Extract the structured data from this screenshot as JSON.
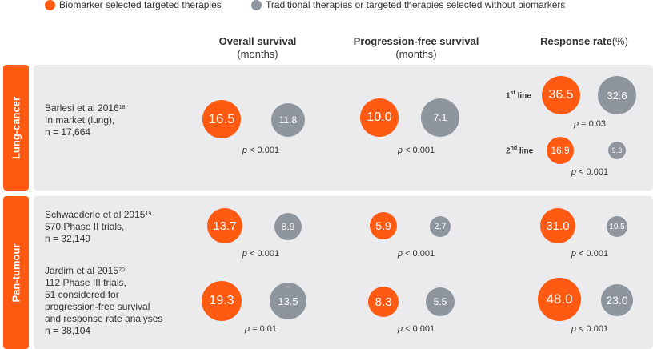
{
  "legend": {
    "biomarker": "Biomarker selected targeted therapies",
    "traditional": "Traditional therapies or targeted therapies selected without biomarkers",
    "colors": {
      "biomarker": "#ff5a12",
      "traditional": "#8f959d"
    }
  },
  "columns": {
    "os": {
      "title": "Overall survival",
      "unit": "(months)"
    },
    "pfs": {
      "title": "Progression-free survival",
      "unit": "(months)"
    },
    "rr": {
      "title": "Response rate",
      "unit": "(%)"
    }
  },
  "groups": {
    "lung": "Lung-cancer",
    "pan": "Pan-tumour"
  },
  "studies": {
    "barlesi": {
      "author": "Barlesi et al 2016",
      "ref": "18",
      "line2": "In market (lung),",
      "line3": "n = 17,664",
      "os": {
        "biomarker": "16.5",
        "traditional": "11.8",
        "p_label": "p",
        "p_text": " < 0.001"
      },
      "pfs": {
        "biomarker": "10.0",
        "traditional": "7.1",
        "p_label": "p",
        "p_text": " < 0.001"
      },
      "rr_first": {
        "label_num": "1",
        "label_sup": "st",
        "label_rest": " line",
        "biomarker": "36.5",
        "traditional": "32.6",
        "p_label": "p",
        "p_text": " = 0.03"
      },
      "rr_second": {
        "label_num": "2",
        "label_sup": "nd",
        "label_rest": " line",
        "biomarker": "16.9",
        "traditional": "9.3",
        "p_label": "p",
        "p_text": " < 0.001"
      }
    },
    "schwaederle": {
      "author": "Schwaederle et al 2015",
      "ref": "19",
      "line2": "570 Phase II trials,",
      "line3": "n = 32,149",
      "os": {
        "biomarker": "13.7",
        "traditional": "8.9",
        "p_label": "p",
        "p_text": " < 0.001"
      },
      "pfs": {
        "biomarker": "5.9",
        "traditional": "2.7",
        "p_label": "p",
        "p_text": " < 0.001"
      },
      "rr": {
        "biomarker": "31.0",
        "traditional": "10.5",
        "p_label": "p",
        "p_text": " < 0.001"
      }
    },
    "jardim": {
      "author": "Jardim et al 2015",
      "ref": "20",
      "line2": "112 Phase III trials,",
      "line3": "51 considered for",
      "line4": "progression-free survival",
      "line5": "and response rate analyses",
      "line6": "n = 38,104",
      "os": {
        "biomarker": "19.3",
        "traditional": "13.5",
        "p_label": "p",
        "p_text": " = 0.01"
      },
      "pfs": {
        "biomarker": "8.3",
        "traditional": "5.5",
        "p_label": "p",
        "p_text": " < 0.001"
      },
      "rr": {
        "biomarker": "48.0",
        "traditional": "23.0",
        "p_label": "p",
        "p_text": " < 0.001"
      }
    }
  }
}
